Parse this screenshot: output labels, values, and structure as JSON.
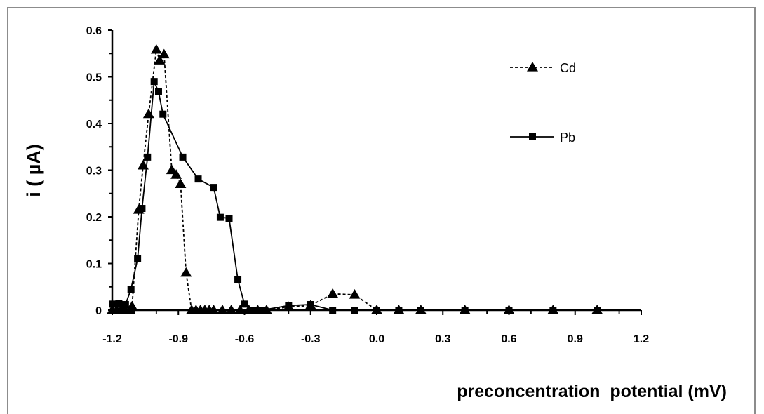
{
  "chart_data": {
    "type": "line",
    "title": "",
    "xlabel": "preconcentration  potential (mV)",
    "ylabel": "i ( µA)",
    "xlim": [
      -1.2,
      1.2
    ],
    "ylim": [
      0,
      0.6
    ],
    "x_ticks": [
      "-1.2",
      "-0.9",
      "-0.6",
      "-0.3",
      "0.0",
      "0.3",
      "0.6",
      "0.9",
      "1.2"
    ],
    "y_ticks": [
      "0",
      "0.1",
      "0.2",
      "0.3",
      "0.4",
      "0.5",
      "0.6"
    ],
    "legend_position": "top-right",
    "grid": false,
    "series": [
      {
        "name": "Cd",
        "line_style": "dashed",
        "marker": "triangle",
        "color": "#000000",
        "points": [
          [
            -1.2,
            0.0
          ],
          [
            -1.18,
            0.0
          ],
          [
            -1.16,
            0.0
          ],
          [
            -1.14,
            0.0
          ],
          [
            -1.12,
            0.0
          ],
          [
            -1.11,
            0.008
          ],
          [
            -1.08,
            0.215
          ],
          [
            -1.06,
            0.31
          ],
          [
            -1.035,
            0.42
          ],
          [
            -1.0,
            0.558
          ],
          [
            -0.985,
            0.535
          ],
          [
            -0.965,
            0.548
          ],
          [
            -0.93,
            0.3
          ],
          [
            -0.91,
            0.29
          ],
          [
            -0.89,
            0.27
          ],
          [
            -0.865,
            0.08
          ],
          [
            -0.84,
            0.0
          ],
          [
            -0.82,
            0.0
          ],
          [
            -0.8,
            0.0
          ],
          [
            -0.78,
            0.0
          ],
          [
            -0.76,
            0.0
          ],
          [
            -0.74,
            0.0
          ],
          [
            -0.7,
            0.0
          ],
          [
            -0.66,
            0.0
          ],
          [
            -0.62,
            0.0
          ],
          [
            -0.58,
            0.0
          ],
          [
            -0.54,
            0.0
          ],
          [
            -0.5,
            0.0
          ],
          [
            -0.4,
            0.007
          ],
          [
            -0.3,
            0.01
          ],
          [
            -0.2,
            0.035
          ],
          [
            -0.1,
            0.033
          ],
          [
            0.0,
            0.0
          ],
          [
            0.1,
            0.0
          ],
          [
            0.2,
            0.0
          ],
          [
            0.4,
            0.0
          ],
          [
            0.6,
            0.0
          ],
          [
            0.8,
            0.0
          ],
          [
            1.0,
            0.0
          ]
        ]
      },
      {
        "name": "Pb",
        "line_style": "solid",
        "marker": "square",
        "color": "#000000",
        "points": [
          [
            -1.2,
            0.013
          ],
          [
            -1.17,
            0.015
          ],
          [
            -1.14,
            0.012
          ],
          [
            -1.115,
            0.045
          ],
          [
            -1.085,
            0.11
          ],
          [
            -1.065,
            0.218
          ],
          [
            -1.04,
            0.328
          ],
          [
            -1.01,
            0.49
          ],
          [
            -0.99,
            0.468
          ],
          [
            -0.97,
            0.42
          ],
          [
            -0.88,
            0.328
          ],
          [
            -0.81,
            0.281
          ],
          [
            -0.74,
            0.263
          ],
          [
            -0.71,
            0.199
          ],
          [
            -0.67,
            0.197
          ],
          [
            -0.63,
            0.065
          ],
          [
            -0.6,
            0.013
          ],
          [
            -0.56,
            0.0
          ],
          [
            -0.52,
            0.0
          ],
          [
            -0.4,
            0.01
          ],
          [
            -0.3,
            0.012
          ],
          [
            -0.2,
            0.0
          ],
          [
            -0.1,
            0.0
          ],
          [
            0.0,
            0.0
          ],
          [
            0.1,
            0.0
          ],
          [
            0.2,
            0.0
          ],
          [
            0.4,
            0.0
          ],
          [
            0.6,
            0.0
          ],
          [
            0.8,
            0.0
          ],
          [
            1.0,
            0.0
          ]
        ]
      }
    ]
  }
}
